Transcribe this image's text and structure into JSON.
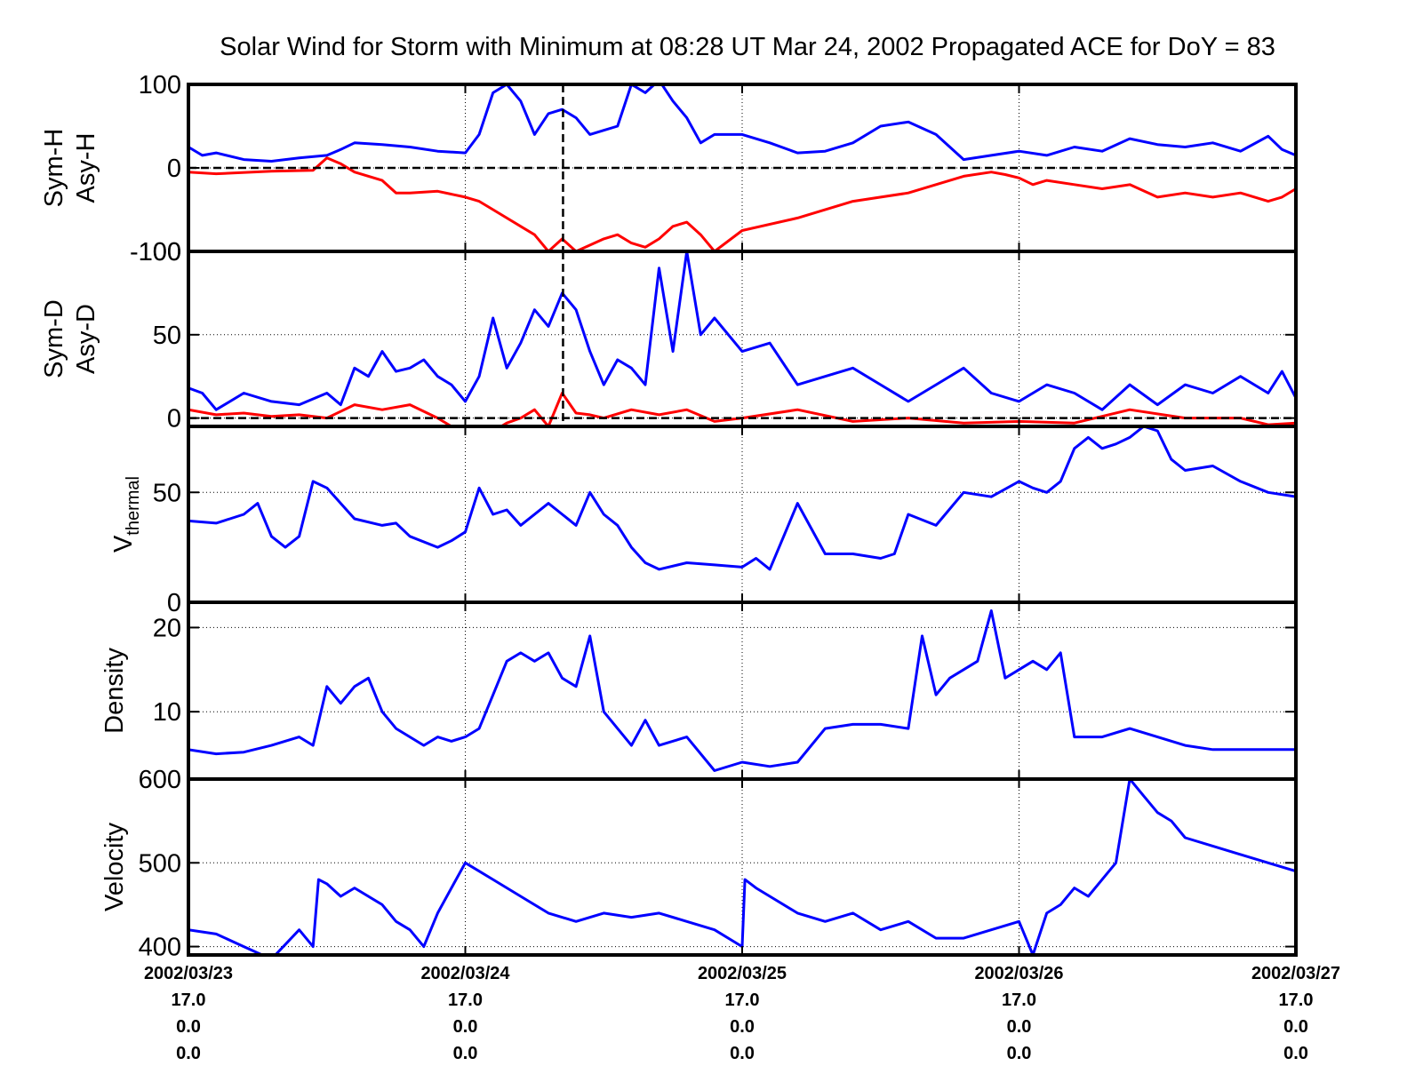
{
  "chart_data": {
    "type": "line",
    "title": "Solar Wind for Storm with Minimum at 08:28 UT Mar 24, 2002  Propagated ACE for DoY = 83",
    "x_range_days": [
      "2002/03/23",
      "2002/03/27"
    ],
    "storm_minimum_day_fraction": 1.353,
    "x_tick_labels": [
      [
        "2002/03/23",
        "17.0",
        "0.0",
        "0.0"
      ],
      [
        "2002/03/24",
        "17.0",
        "0.0",
        "0.0"
      ],
      [
        "2002/03/25",
        "17.0",
        "0.0",
        "0.0"
      ],
      [
        "2002/03/26",
        "17.0",
        "0.0",
        "0.0"
      ],
      [
        "2002/03/27",
        "17.0",
        "0.0",
        "0.0"
      ]
    ],
    "panels": [
      {
        "id": "symh",
        "ylabel_lines": [
          "Sym-H",
          "Asy-H"
        ],
        "ylim": [
          -100,
          100
        ],
        "yticks": [
          -100,
          0,
          100
        ],
        "ytick_labels": [
          "-100",
          "0",
          "100"
        ],
        "zero_line": true,
        "series": [
          {
            "color": "#0000ff",
            "x": [
              0,
              0.05,
              0.1,
              0.2,
              0.3,
              0.4,
              0.5,
              0.55,
              0.6,
              0.7,
              0.8,
              0.9,
              1.0,
              1.05,
              1.1,
              1.15,
              1.2,
              1.25,
              1.3,
              1.35,
              1.4,
              1.45,
              1.5,
              1.55,
              1.6,
              1.65,
              1.7,
              1.75,
              1.8,
              1.85,
              1.9,
              2.0,
              2.1,
              2.2,
              2.3,
              2.4,
              2.5,
              2.6,
              2.7,
              2.8,
              2.9,
              3.0,
              3.1,
              3.2,
              3.3,
              3.4,
              3.5,
              3.6,
              3.7,
              3.8,
              3.9,
              3.95,
              4.0
            ],
            "y": [
              25,
              15,
              18,
              10,
              8,
              12,
              15,
              22,
              30,
              28,
              25,
              20,
              18,
              40,
              90,
              100,
              80,
              40,
              65,
              70,
              60,
              40,
              45,
              50,
              100,
              90,
              105,
              80,
              60,
              30,
              40,
              40,
              30,
              18,
              20,
              30,
              50,
              55,
              40,
              10,
              15,
              20,
              15,
              25,
              20,
              35,
              28,
              25,
              30,
              20,
              38,
              22,
              15
            ]
          },
          {
            "color": "#ff0000",
            "x": [
              0,
              0.1,
              0.3,
              0.45,
              0.5,
              0.55,
              0.6,
              0.7,
              0.75,
              0.8,
              0.9,
              1.0,
              1.05,
              1.1,
              1.2,
              1.25,
              1.3,
              1.35,
              1.4,
              1.5,
              1.55,
              1.6,
              1.65,
              1.7,
              1.75,
              1.8,
              1.85,
              1.9,
              2.0,
              2.2,
              2.4,
              2.6,
              2.8,
              2.9,
              2.95,
              3.0,
              3.05,
              3.1,
              3.2,
              3.3,
              3.4,
              3.5,
              3.6,
              3.7,
              3.8,
              3.9,
              3.95,
              4.0
            ],
            "y": [
              -5,
              -7,
              -4,
              -3,
              12,
              5,
              -5,
              -15,
              -30,
              -30,
              -28,
              -35,
              -40,
              -50,
              -70,
              -80,
              -100,
              -85,
              -100,
              -85,
              -80,
              -90,
              -95,
              -85,
              -70,
              -65,
              -80,
              -100,
              -75,
              -60,
              -40,
              -30,
              -10,
              -5,
              -8,
              -12,
              -20,
              -15,
              -20,
              -25,
              -20,
              -35,
              -30,
              -35,
              -30,
              -40,
              -35,
              -25
            ]
          }
        ]
      },
      {
        "id": "symd",
        "ylabel_lines": [
          "Sym-D",
          "Asy-D"
        ],
        "ylim": [
          -5,
          100
        ],
        "yticks": [
          0,
          50,
          100
        ],
        "ytick_labels": [
          "0",
          "50",
          "100"
        ],
        "zero_line": true,
        "series": [
          {
            "color": "#0000ff",
            "x": [
              0,
              0.05,
              0.1,
              0.2,
              0.3,
              0.4,
              0.5,
              0.55,
              0.6,
              0.65,
              0.7,
              0.75,
              0.8,
              0.85,
              0.9,
              0.95,
              1.0,
              1.05,
              1.1,
              1.15,
              1.2,
              1.25,
              1.3,
              1.35,
              1.4,
              1.45,
              1.5,
              1.55,
              1.6,
              1.65,
              1.7,
              1.75,
              1.8,
              1.85,
              1.9,
              2.0,
              2.1,
              2.2,
              2.3,
              2.4,
              2.5,
              2.6,
              2.7,
              2.8,
              2.9,
              3.0,
              3.1,
              3.2,
              3.3,
              3.4,
              3.5,
              3.6,
              3.7,
              3.8,
              3.9,
              3.95,
              4.0
            ],
            "y": [
              18,
              15,
              5,
              15,
              10,
              8,
              15,
              8,
              30,
              25,
              40,
              28,
              30,
              35,
              25,
              20,
              10,
              25,
              60,
              30,
              45,
              65,
              55,
              75,
              65,
              40,
              20,
              35,
              30,
              20,
              90,
              40,
              100,
              50,
              60,
              40,
              45,
              20,
              25,
              30,
              20,
              10,
              20,
              30,
              15,
              10,
              20,
              15,
              5,
              20,
              8,
              20,
              15,
              25,
              15,
              28,
              12
            ]
          },
          {
            "color": "#ff0000",
            "x": [
              0,
              0.1,
              0.2,
              0.3,
              0.4,
              0.5,
              0.6,
              0.7,
              0.8,
              0.9,
              0.95,
              1.0,
              1.05,
              1.1,
              1.15,
              1.2,
              1.25,
              1.3,
              1.35,
              1.4,
              1.45,
              1.5,
              1.6,
              1.7,
              1.8,
              1.9,
              2.0,
              2.2,
              2.4,
              2.6,
              2.8,
              3.0,
              3.2,
              3.4,
              3.6,
              3.8,
              3.9,
              4.0
            ],
            "y": [
              5,
              2,
              3,
              1,
              2,
              0,
              8,
              5,
              8,
              0,
              -5,
              -10,
              -5,
              -8,
              -3,
              0,
              5,
              -5,
              15,
              3,
              2,
              0,
              5,
              2,
              5,
              -2,
              0,
              5,
              -2,
              0,
              -3,
              -2,
              -3,
              5,
              0,
              0,
              -4,
              -3
            ]
          }
        ]
      },
      {
        "id": "vthermal",
        "ylabel_main": "V",
        "ylabel_sub": "thermal",
        "ylim": [
          0,
          80
        ],
        "yticks": [
          0,
          50
        ],
        "ytick_labels": [
          "0",
          "50"
        ],
        "series": [
          {
            "color": "#0000ff",
            "x": [
              0,
              0.1,
              0.15,
              0.2,
              0.25,
              0.3,
              0.35,
              0.4,
              0.45,
              0.5,
              0.55,
              0.6,
              0.7,
              0.75,
              0.8,
              0.9,
              0.95,
              1.0,
              1.05,
              1.1,
              1.15,
              1.2,
              1.3,
              1.4,
              1.45,
              1.5,
              1.55,
              1.6,
              1.65,
              1.7,
              1.8,
              1.9,
              2.0,
              2.05,
              2.1,
              2.15,
              2.2,
              2.3,
              2.4,
              2.5,
              2.55,
              2.6,
              2.7,
              2.8,
              2.9,
              3.0,
              3.05,
              3.1,
              3.15,
              3.2,
              3.25,
              3.3,
              3.35,
              3.4,
              3.45,
              3.5,
              3.55,
              3.6,
              3.7,
              3.8,
              3.9,
              4.0
            ],
            "y": [
              37,
              36,
              38,
              40,
              45,
              30,
              25,
              30,
              55,
              52,
              45,
              38,
              35,
              36,
              30,
              25,
              28,
              32,
              52,
              40,
              42,
              35,
              45,
              35,
              50,
              40,
              35,
              25,
              18,
              15,
              18,
              17,
              16,
              20,
              15,
              30,
              45,
              22,
              22,
              20,
              22,
              40,
              35,
              50,
              48,
              55,
              52,
              50,
              55,
              70,
              75,
              70,
              72,
              75,
              80,
              78,
              65,
              60,
              62,
              55,
              50,
              48
            ]
          }
        ]
      },
      {
        "id": "density",
        "ylabel_lines": [
          "Density"
        ],
        "ylim": [
          2,
          23
        ],
        "yticks": [
          10,
          20
        ],
        "ytick_labels": [
          "10",
          "20"
        ],
        "series": [
          {
            "color": "#0000ff",
            "x": [
              0,
              0.1,
              0.2,
              0.3,
              0.4,
              0.45,
              0.5,
              0.55,
              0.6,
              0.65,
              0.7,
              0.75,
              0.8,
              0.85,
              0.9,
              0.95,
              1.0,
              1.05,
              1.1,
              1.15,
              1.2,
              1.25,
              1.3,
              1.35,
              1.4,
              1.45,
              1.5,
              1.55,
              1.6,
              1.65,
              1.7,
              1.8,
              1.9,
              2.0,
              2.1,
              2.2,
              2.3,
              2.4,
              2.5,
              2.6,
              2.65,
              2.7,
              2.75,
              2.8,
              2.85,
              2.9,
              2.95,
              3.0,
              3.05,
              3.1,
              3.15,
              3.2,
              3.3,
              3.4,
              3.5,
              3.6,
              3.7,
              3.8,
              3.9,
              4.0
            ],
            "y": [
              5.5,
              5,
              5.2,
              6,
              7,
              6,
              13,
              11,
              13,
              14,
              10,
              8,
              7,
              6,
              7,
              6.5,
              7,
              8,
              12,
              16,
              17,
              16,
              17,
              14,
              13,
              19,
              10,
              8,
              6,
              9,
              6,
              7,
              3,
              4,
              3.5,
              4,
              8,
              8.5,
              8.5,
              8,
              19,
              12,
              14,
              15,
              16,
              22,
              14,
              15,
              16,
              15,
              17,
              7,
              7,
              8,
              7,
              6,
              5.5,
              5.5,
              5.5,
              5.5
            ]
          }
        ]
      },
      {
        "id": "velocity",
        "ylabel_lines": [
          "Velocity"
        ],
        "ylim": [
          390,
          600
        ],
        "yticks": [
          400,
          500,
          600
        ],
        "ytick_labels": [
          "400",
          "500",
          "600"
        ],
        "series": [
          {
            "color": "#0000ff",
            "x": [
              0,
              0.1,
              0.2,
              0.3,
              0.4,
              0.45,
              0.47,
              0.5,
              0.55,
              0.6,
              0.7,
              0.75,
              0.8,
              0.85,
              0.9,
              0.95,
              1.0,
              1.05,
              1.1,
              1.2,
              1.3,
              1.4,
              1.5,
              1.6,
              1.7,
              1.8,
              1.9,
              2.0,
              2.01,
              2.05,
              2.1,
              2.2,
              2.3,
              2.4,
              2.5,
              2.6,
              2.7,
              2.8,
              2.9,
              3.0,
              3.05,
              3.1,
              3.15,
              3.2,
              3.25,
              3.3,
              3.35,
              3.4,
              3.45,
              3.5,
              3.55,
              3.6,
              3.7,
              3.8,
              3.9,
              4.0
            ],
            "y": [
              420,
              415,
              400,
              385,
              420,
              400,
              480,
              475,
              460,
              470,
              450,
              430,
              420,
              400,
              440,
              470,
              500,
              490,
              480,
              460,
              440,
              430,
              440,
              435,
              440,
              430,
              420,
              400,
              480,
              470,
              460,
              440,
              430,
              440,
              420,
              430,
              410,
              410,
              420,
              430,
              390,
              440,
              450,
              470,
              460,
              480,
              500,
              600,
              580,
              560,
              550,
              530,
              520,
              510,
              500,
              490
            ]
          }
        ]
      }
    ]
  }
}
